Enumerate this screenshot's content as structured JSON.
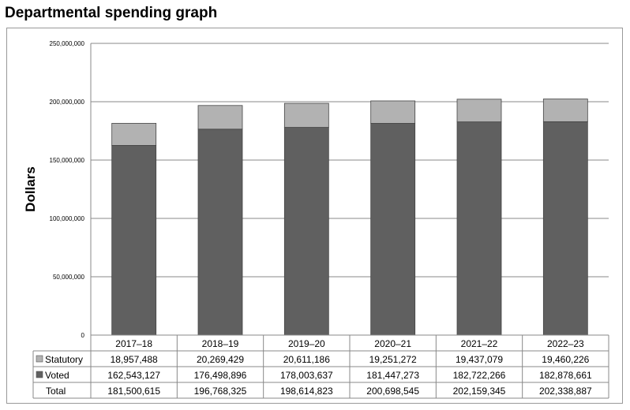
{
  "title": "Departmental spending graph",
  "chart_data": {
    "type": "bar",
    "stacked": true,
    "ylabel": "Dollars",
    "ylim": [
      0,
      250000000
    ],
    "yticks": [
      "0",
      "50,000,000",
      "100,000,000",
      "150,000,000",
      "200,000,000",
      "250,000,000"
    ],
    "grid": true,
    "legend": "table-left",
    "categories": [
      "2017–18",
      "2018–19",
      "2019–20",
      "2020–21",
      "2021–22",
      "2022–23"
    ],
    "series": [
      {
        "name": "Statutory",
        "color": "#b2b2b2",
        "values": [
          18957488,
          20269429,
          20611186,
          19251272,
          19437079,
          19460226
        ],
        "labels": [
          "18,957,488",
          "20,269,429",
          "20,611,186",
          "19,251,272",
          "19,437,079",
          "19,460,226"
        ]
      },
      {
        "name": "Voted",
        "color": "#606060",
        "values": [
          162543127,
          176498896,
          178003637,
          181447273,
          182722266,
          182878661
        ],
        "labels": [
          "162,543,127",
          "176,498,896",
          "178,003,637",
          "181,447,273",
          "182,722,266",
          "182,878,661"
        ]
      }
    ],
    "total": {
      "name": "Total",
      "labels": [
        "181,500,615",
        "196,768,325",
        "198,614,823",
        "200,698,545",
        "202,159,345",
        "202,338,887"
      ]
    }
  }
}
